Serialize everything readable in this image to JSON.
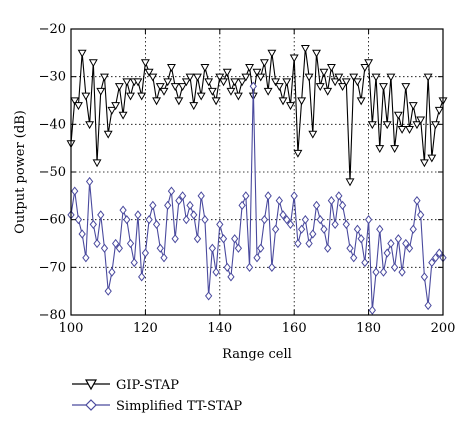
{
  "chart_data": {
    "type": "line",
    "title": "",
    "xlabel": "Range cell",
    "ylabel": "Output power (dB)",
    "xlim": [
      100,
      200
    ],
    "ylim": [
      -80,
      -20
    ],
    "xticks": [
      100,
      120,
      140,
      160,
      180,
      200
    ],
    "yticks": [
      -20,
      -30,
      -40,
      -50,
      -60,
      -70,
      -80
    ],
    "xtick_labels": [
      "100",
      "120",
      "140",
      "160",
      "180",
      "200"
    ],
    "ytick_labels": [
      "−20",
      "−30",
      "−40",
      "−50",
      "−60",
      "−70",
      "−80"
    ],
    "grid": true,
    "legend_position": "bottom, below the plot",
    "series": [
      {
        "name": "GIP-STAP",
        "color": "#000000",
        "marker": "triangle-down",
        "x": [
          100,
          101,
          102,
          103,
          104,
          105,
          106,
          107,
          108,
          109,
          110,
          111,
          112,
          113,
          114,
          115,
          116,
          117,
          118,
          119,
          120,
          121,
          122,
          123,
          124,
          125,
          126,
          127,
          128,
          129,
          130,
          131,
          132,
          133,
          134,
          135,
          136,
          137,
          138,
          139,
          140,
          141,
          142,
          143,
          144,
          145,
          146,
          147,
          148,
          149,
          150,
          151,
          152,
          153,
          154,
          155,
          156,
          157,
          158,
          159,
          160,
          161,
          162,
          163,
          164,
          165,
          166,
          167,
          168,
          169,
          170,
          171,
          172,
          173,
          174,
          175,
          176,
          177,
          178,
          179,
          180,
          181,
          182,
          183,
          184,
          185,
          186,
          187,
          188,
          189,
          190,
          191,
          192,
          193,
          194,
          195,
          196,
          197,
          198,
          199,
          200
        ],
        "values": [
          -44,
          -35,
          -36,
          -25,
          -34,
          -40,
          -27,
          -48,
          -33,
          -30,
          -42,
          -37,
          -36,
          -32,
          -38,
          -31,
          -34,
          -31,
          -31,
          -34,
          -27,
          -29,
          -30,
          -35,
          -32,
          -33,
          -31,
          -28,
          -32,
          -35,
          -32,
          -31,
          -30,
          -36,
          -30,
          -34,
          -28,
          -31,
          -33,
          -35,
          -30,
          -31,
          -29,
          -33,
          -31,
          -34,
          -31,
          -30,
          -28,
          -34,
          -29,
          -30,
          -27,
          -33,
          -25,
          -31,
          -32,
          -35,
          -31,
          -36,
          -26,
          -46,
          -35,
          -24,
          -30,
          -42,
          -25,
          -32,
          -29,
          -33,
          -28,
          -31,
          -30,
          -32,
          -31,
          -52,
          -30,
          -31,
          -35,
          -28,
          -27,
          -40,
          -30,
          -45,
          -32,
          -40,
          -30,
          -45,
          -38,
          -41,
          -32,
          -41,
          -36,
          -40,
          -39,
          -48,
          -30,
          -47,
          -40,
          -37,
          -35
        ]
      },
      {
        "name": "Simplified TT-STAP",
        "color": "#4a4a9e",
        "marker": "diamond",
        "x": [
          100,
          101,
          102,
          103,
          104,
          105,
          106,
          107,
          108,
          109,
          110,
          111,
          112,
          113,
          114,
          115,
          116,
          117,
          118,
          119,
          120,
          121,
          122,
          123,
          124,
          125,
          126,
          127,
          128,
          129,
          130,
          131,
          132,
          133,
          134,
          135,
          136,
          137,
          138,
          139,
          140,
          141,
          142,
          143,
          144,
          145,
          146,
          147,
          148,
          149,
          150,
          151,
          152,
          153,
          154,
          155,
          156,
          157,
          158,
          159,
          160,
          161,
          162,
          163,
          164,
          165,
          166,
          167,
          168,
          169,
          170,
          171,
          172,
          173,
          174,
          175,
          176,
          177,
          178,
          179,
          180,
          181,
          182,
          183,
          184,
          185,
          186,
          187,
          188,
          189,
          190,
          191,
          192,
          193,
          194,
          195,
          196,
          197,
          198,
          199,
          200
        ],
        "values": [
          -59,
          -54,
          -60,
          -63,
          -68,
          -52,
          -61,
          -65,
          -59,
          -66,
          -75,
          -71,
          -65,
          -66,
          -58,
          -60,
          -65,
          -69,
          -59,
          -72,
          -67,
          -60,
          -57,
          -61,
          -66,
          -68,
          -57,
          -54,
          -64,
          -56,
          -55,
          -60,
          -57,
          -59,
          -64,
          -55,
          -60,
          -76,
          -66,
          -71,
          -61,
          -64,
          -70,
          -72,
          -64,
          -66,
          -57,
          -55,
          -70,
          -32,
          -68,
          -66,
          -60,
          -55,
          -70,
          -62,
          -56,
          -59,
          -60,
          -61,
          -55,
          -65,
          -62,
          -60,
          -65,
          -63,
          -57,
          -60,
          -62,
          -66,
          -56,
          -61,
          -55,
          -57,
          -61,
          -66,
          -68,
          -62,
          -64,
          -69,
          -60,
          -79,
          -71,
          -62,
          -71,
          -67,
          -65,
          -70,
          -64,
          -71,
          -65,
          -66,
          -62,
          -56,
          -59,
          -72,
          -78,
          -69,
          -68,
          -67,
          -68
        ]
      }
    ]
  }
}
